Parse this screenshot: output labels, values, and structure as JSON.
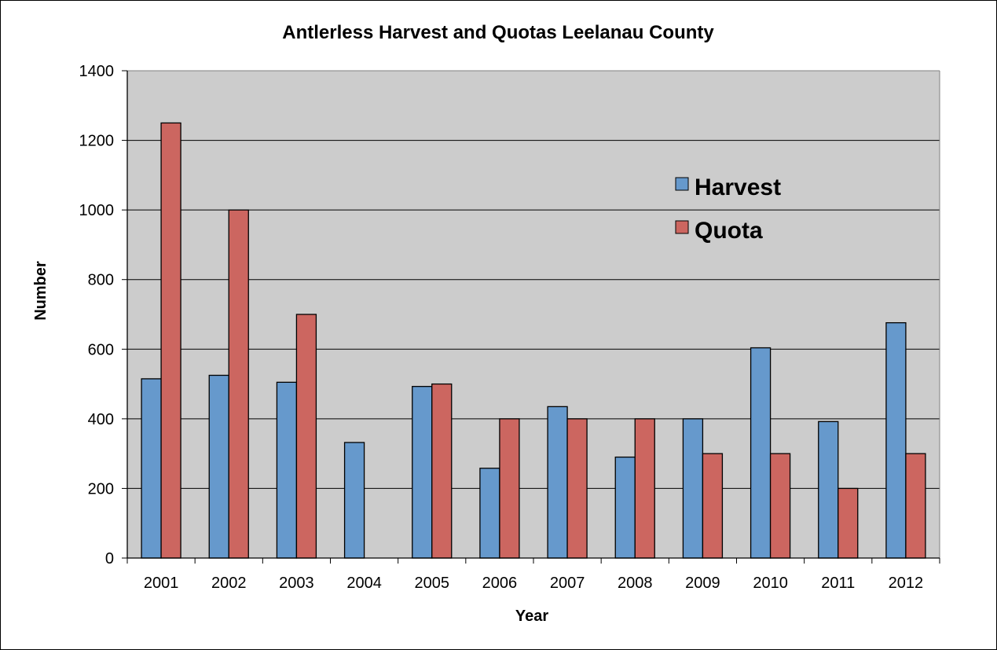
{
  "chart_data": {
    "type": "bar",
    "title": "Antlerless Harvest and Quotas Leelanau County",
    "xlabel": "Year",
    "ylabel": "Number",
    "ylim": [
      0,
      1400
    ],
    "yticks": [
      0,
      200,
      400,
      600,
      800,
      1000,
      1200,
      1400
    ],
    "categories": [
      "2001",
      "2002",
      "2003",
      "2004",
      "2005",
      "2006",
      "2007",
      "2008",
      "2009",
      "2010",
      "2011",
      "2012"
    ],
    "series": [
      {
        "name": "Harvest",
        "color": "#6699cc",
        "values": [
          515,
          525,
          505,
          332,
          493,
          258,
          435,
          290,
          400,
          604,
          392,
          676
        ]
      },
      {
        "name": "Quota",
        "color": "#cc6660",
        "values": [
          1250,
          1000,
          700,
          null,
          500,
          400,
          400,
          400,
          300,
          300,
          200,
          300
        ]
      }
    ],
    "grid": true,
    "legend": "upper-right",
    "plot_background": "#cccccc"
  }
}
